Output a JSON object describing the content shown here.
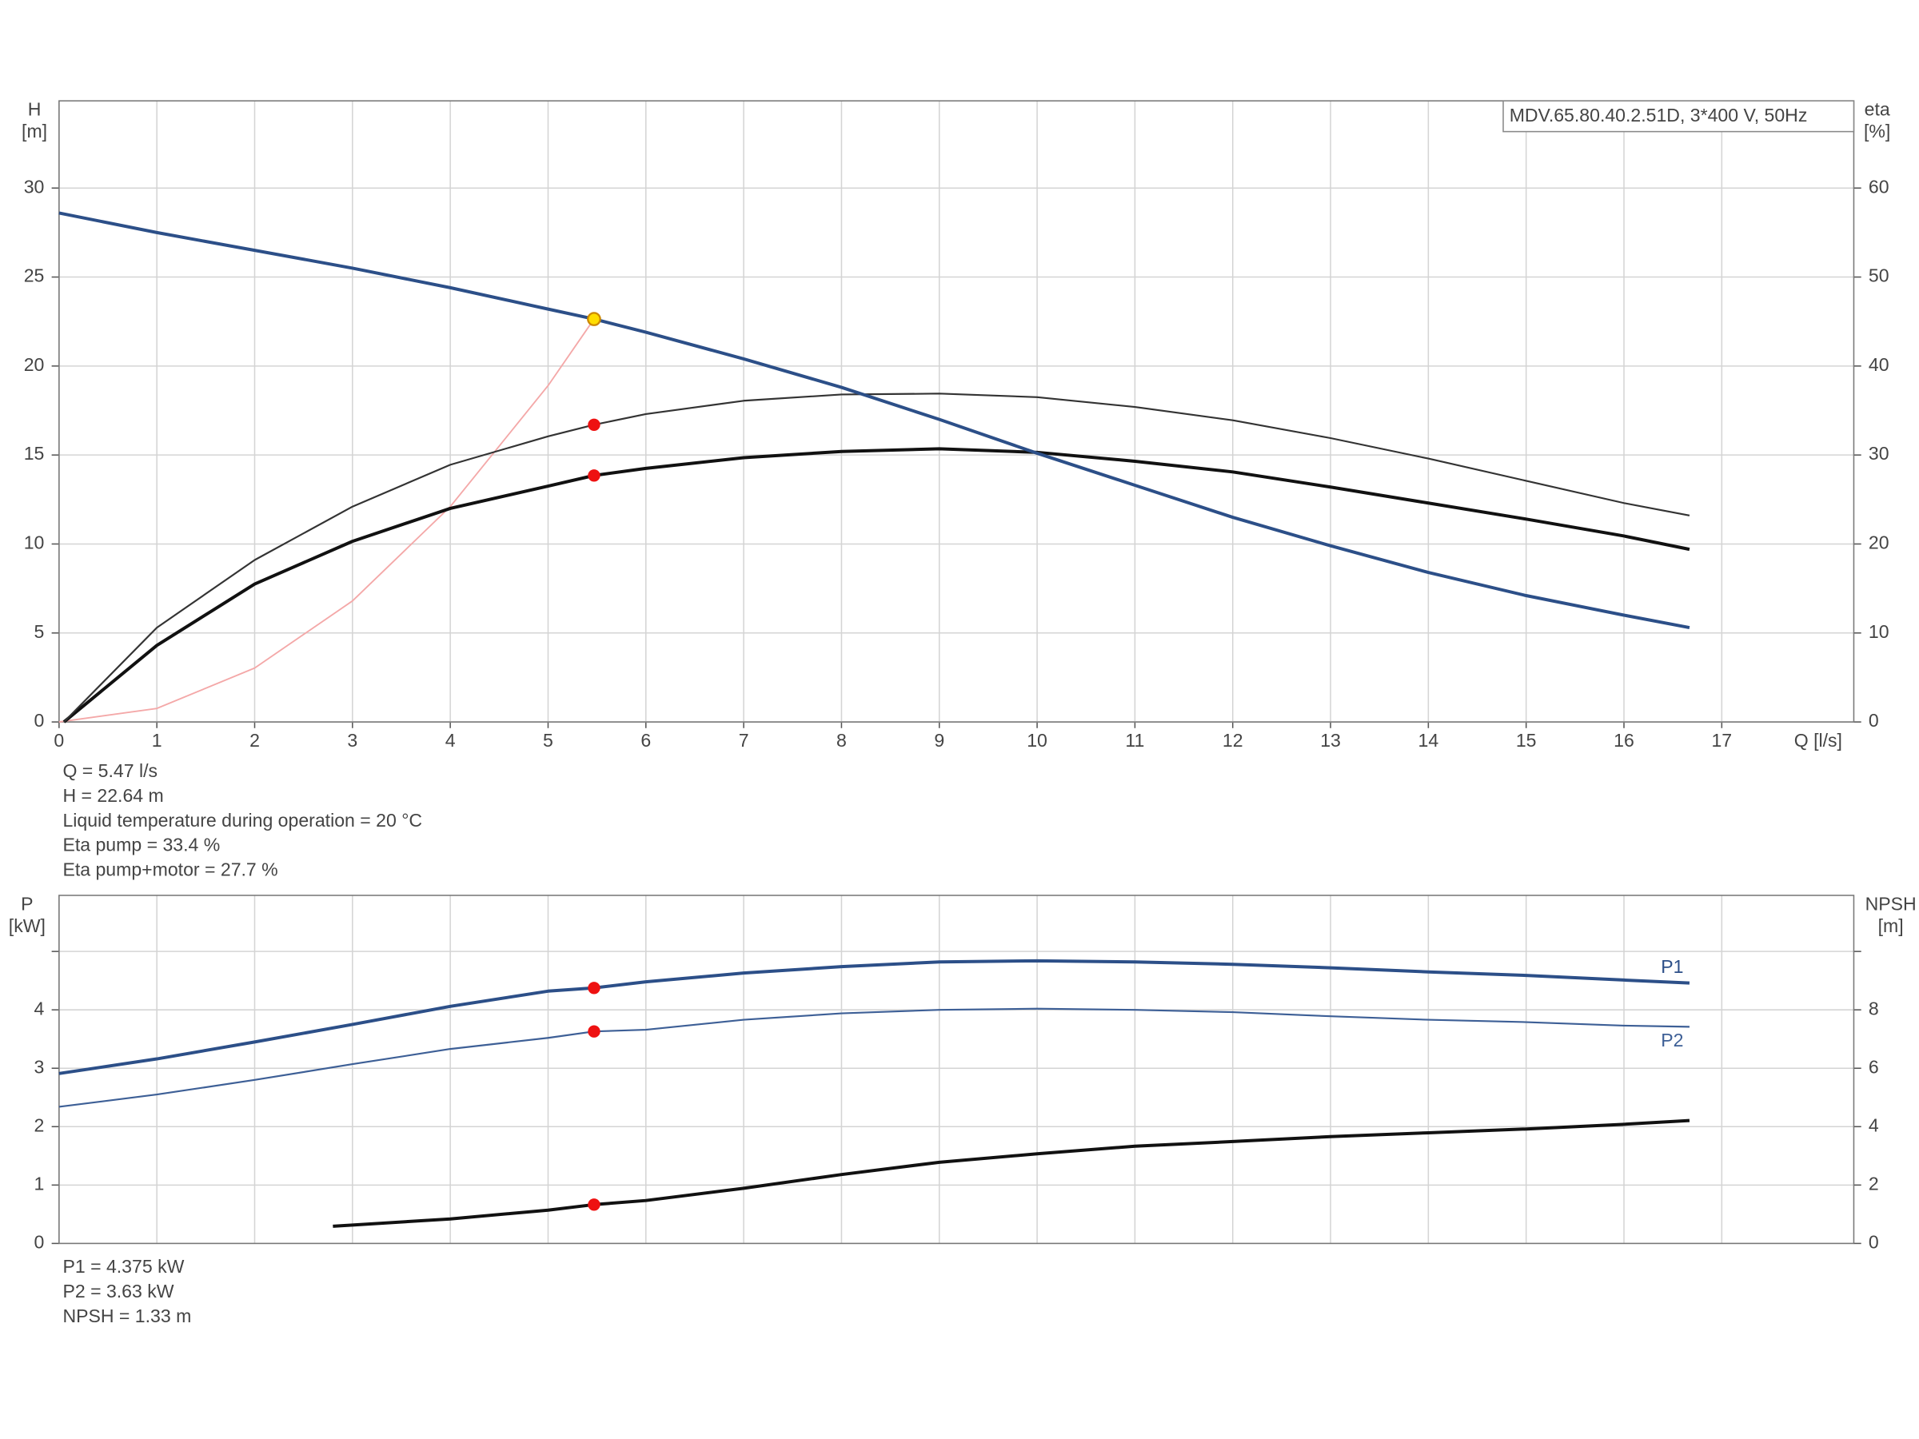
{
  "chart_data": [
    {
      "type": "line",
      "title": "MDV.65.80.40.2.51D, 3*400 V, 50Hz",
      "y_label": [
        "H",
        "[m]"
      ],
      "y2_label": [
        "eta",
        "[%]"
      ],
      "x_label": "Q [l/s]",
      "xlim": [
        0,
        18.35
      ],
      "xticks": [
        0,
        1,
        2,
        3,
        4,
        5,
        6,
        7,
        8,
        9,
        10,
        11,
        12,
        13,
        14,
        15,
        16,
        17
      ],
      "ylim": [
        0,
        34.9
      ],
      "yticks": [
        0,
        5,
        10,
        15,
        20,
        25,
        30
      ],
      "y2lim": [
        0,
        69.8
      ],
      "y2ticks": [
        0,
        10,
        20,
        30,
        40,
        50,
        60
      ],
      "grid": true,
      "operating_x": 5.47,
      "series": [
        {
          "color": "#2c4f88",
          "width": 2.6,
          "marker_color": "#ffdd00",
          "x": [
            0,
            1,
            2,
            3,
            4,
            5,
            5.47,
            6,
            7,
            8,
            9,
            10,
            11,
            12,
            13,
            14,
            15,
            16,
            16.67
          ],
          "values": [
            28.6,
            27.5,
            26.5,
            25.5,
            24.4,
            23.2,
            22.64,
            21.9,
            20.4,
            18.8,
            17.0,
            15.1,
            13.3,
            11.5,
            9.9,
            8.4,
            7.1,
            6.0,
            5.3
          ]
        },
        {
          "color": "#333333",
          "width": 1.4,
          "axis": "y2",
          "marker_color": "#ee1111",
          "x": [
            0.05,
            1,
            2,
            3,
            4,
            5,
            5.47,
            6,
            7,
            8,
            9,
            10,
            11,
            12,
            13,
            14,
            15,
            16,
            16.67
          ],
          "values": [
            0,
            10.6,
            18.2,
            24.2,
            28.9,
            32.1,
            33.4,
            34.6,
            36.1,
            36.8,
            36.9,
            36.5,
            35.4,
            33.9,
            31.9,
            29.6,
            27.1,
            24.6,
            23.2
          ]
        },
        {
          "color": "#111111",
          "width": 2.6,
          "axis": "y2",
          "marker_color": "#ee1111",
          "x": [
            0.05,
            1,
            2,
            3,
            4,
            5,
            5.47,
            6,
            7,
            8,
            9,
            10,
            11,
            12,
            13,
            14,
            15,
            16,
            16.67
          ],
          "values": [
            0,
            8.6,
            15.5,
            20.3,
            24.0,
            26.5,
            27.7,
            28.5,
            29.7,
            30.4,
            30.7,
            30.3,
            29.3,
            28.1,
            26.4,
            24.6,
            22.8,
            20.9,
            19.4
          ]
        },
        {
          "color": "#f4a8a8",
          "width": 1.2,
          "x": [
            0,
            1,
            2,
            3,
            4,
            5,
            5.47
          ],
          "values": [
            0,
            0.76,
            3.03,
            6.8,
            12.1,
            18.9,
            22.64
          ]
        }
      ],
      "notes": [
        "Q = 5.47 l/s",
        "H = 22.64 m",
        "Liquid temperature during operation = 20 °C",
        "Eta pump = 33.4 %",
        "Eta pump+motor = 27.7 %"
      ]
    },
    {
      "type": "line",
      "y_label": [
        "P",
        "[kW]"
      ],
      "y2_label": [
        "NPSH",
        "[m]"
      ],
      "xlim": [
        0,
        18.35
      ],
      "ylim": [
        0,
        5.96
      ],
      "yticks": [
        0,
        1,
        2,
        3,
        4,
        {
          "value": 5,
          "label": null
        }
      ],
      "y2lim": [
        0,
        11.92
      ],
      "y2ticks": [
        0,
        2,
        4,
        6,
        8,
        {
          "value": 10,
          "label": null
        }
      ],
      "grid": true,
      "operating_x": 5.47,
      "series": [
        {
          "name": "P1",
          "color": "#2c4f88",
          "width": 2.6,
          "marker_color": "#ee1111",
          "x": [
            0,
            1,
            2,
            3,
            4,
            5,
            5.47,
            6,
            7,
            8,
            9,
            10,
            11,
            12,
            13,
            14,
            15,
            16,
            16.67
          ],
          "values": [
            2.91,
            3.16,
            3.45,
            3.75,
            4.06,
            4.32,
            4.375,
            4.48,
            4.63,
            4.74,
            4.82,
            4.84,
            4.82,
            4.78,
            4.72,
            4.65,
            4.59,
            4.51,
            4.46
          ]
        },
        {
          "name": "P2",
          "color": "#3d5f96",
          "width": 1.4,
          "marker_color": "#ee1111",
          "x": [
            0,
            1,
            2,
            3,
            4,
            5,
            5.47,
            6,
            7,
            8,
            9,
            10,
            11,
            12,
            13,
            14,
            15,
            16,
            16.67
          ],
          "values": [
            2.34,
            2.55,
            2.8,
            3.07,
            3.33,
            3.52,
            3.63,
            3.66,
            3.83,
            3.94,
            4.0,
            4.02,
            4.0,
            3.96,
            3.89,
            3.83,
            3.79,
            3.73,
            3.71
          ]
        },
        {
          "color": "#111111",
          "width": 2.6,
          "axis": "y2",
          "marker_color": "#ee1111",
          "x": [
            2.8,
            3,
            4,
            5,
            5.47,
            6,
            7,
            8,
            9,
            10,
            11,
            12,
            13,
            14,
            15,
            16,
            16.67
          ],
          "values": [
            0.59,
            0.63,
            0.84,
            1.14,
            1.33,
            1.47,
            1.89,
            2.36,
            2.78,
            3.07,
            3.33,
            3.49,
            3.66,
            3.79,
            3.92,
            4.08,
            4.21
          ]
        }
      ],
      "notes": [
        "P1 = 4.375 kW",
        "P2 = 3.63 kW",
        "NPSH = 1.33 m"
      ]
    }
  ]
}
